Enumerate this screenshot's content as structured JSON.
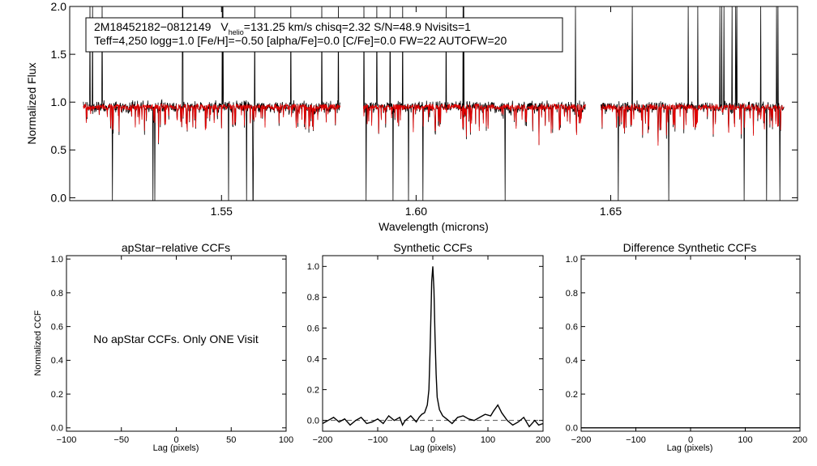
{
  "colors": {
    "observed": "#000000",
    "model": "#e00000",
    "axis": "#000000",
    "dashed": "#555555"
  },
  "chart_data": [
    {
      "type": "line",
      "panel": "spectrum",
      "xlabel": "Wavelength (microns)",
      "ylabel": "Normalized Flux",
      "xlim": [
        1.511,
        1.698
      ],
      "ylim": [
        -0.03,
        2.0
      ],
      "xticks": [
        1.55,
        1.6,
        1.65
      ],
      "xtick_labels": [
        "1.55",
        "1.60",
        "1.65"
      ],
      "yticks": [
        0.0,
        0.5,
        1.0,
        1.5,
        2.0
      ],
      "ytick_labels": [
        "0.0",
        "0.5",
        "1.0",
        "1.5",
        "2.0"
      ],
      "chip_ranges": [
        [
          1.5145,
          1.5805
        ],
        [
          1.5865,
          1.6435
        ],
        [
          1.6475,
          1.6945
        ]
      ],
      "continuum": 0.95,
      "series": [
        {
          "name": "observed spectrum",
          "color": "#000000"
        },
        {
          "name": "model spectrum",
          "color": "#e00000"
        }
      ],
      "annotation": {
        "star": "2M18452182−0812149",
        "v_label": "V",
        "v_sub": "helio",
        "v_value": "=131.25 km/s  chisq=2.32  S/N=48.9  Nvisits=1",
        "line2": "Teff=4,250 logg=1.0 [Fe/H]=−0.50 [alpha/Fe]=0.0 [C/Fe]=0.0 FW=22 AUTOFW=20"
      }
    },
    {
      "type": "line",
      "panel": "apstar",
      "title": "apStar−relative CCFs",
      "xlabel": "Lag (pixels)",
      "ylabel": "Normalized CCF",
      "xlim": [
        -100,
        100
      ],
      "ylim": [
        -0.02,
        1.02
      ],
      "xticks": [
        -100,
        -50,
        0,
        50,
        100
      ],
      "xtick_labels": [
        "−100",
        "−50",
        "0",
        "50",
        "100"
      ],
      "yticks": [
        0.0,
        0.2,
        0.4,
        0.6,
        0.8,
        1.0
      ],
      "ytick_labels": [
        "0.0",
        "0.2",
        "0.4",
        "0.6",
        "0.8",
        "1.0"
      ],
      "message": "No apStar CCFs.  Only ONE Visit"
    },
    {
      "type": "line",
      "panel": "synthetic",
      "title": "Synthetic CCFs",
      "xlabel": "Lag (pixels)",
      "xlim": [
        -200,
        200
      ],
      "ylim": [
        -0.07,
        1.07
      ],
      "xticks": [
        -200,
        -100,
        0,
        100,
        200
      ],
      "xtick_labels": [
        "−200",
        "−100",
        "0",
        "100",
        "200"
      ],
      "yticks": [
        0.0,
        0.2,
        0.4,
        0.6,
        0.8,
        1.0
      ],
      "ytick_labels": [
        "0.0",
        "0.2",
        "0.4",
        "0.6",
        "0.8",
        "1.0"
      ],
      "baseline": 0.0,
      "points": [
        [
          -200,
          -0.02
        ],
        [
          -190,
          0.0
        ],
        [
          -180,
          0.02
        ],
        [
          -170,
          -0.01
        ],
        [
          -160,
          0.01
        ],
        [
          -150,
          -0.03
        ],
        [
          -140,
          0.0
        ],
        [
          -130,
          0.02
        ],
        [
          -120,
          -0.02
        ],
        [
          -110,
          -0.01
        ],
        [
          -100,
          0.01
        ],
        [
          -90,
          -0.02
        ],
        [
          -80,
          0.03
        ],
        [
          -70,
          0.0
        ],
        [
          -60,
          0.02
        ],
        [
          -55,
          -0.03
        ],
        [
          -50,
          0.0
        ],
        [
          -40,
          0.03
        ],
        [
          -30,
          -0.01
        ],
        [
          -25,
          0.02
        ],
        [
          -20,
          0.04
        ],
        [
          -15,
          0.05
        ],
        [
          -10,
          0.1
        ],
        [
          -7,
          0.2
        ],
        [
          -5,
          0.45
        ],
        [
          -3,
          0.75
        ],
        [
          -2,
          0.9
        ],
        [
          0,
          1.0
        ],
        [
          2,
          0.85
        ],
        [
          4,
          0.55
        ],
        [
          6,
          0.3
        ],
        [
          8,
          0.15
        ],
        [
          12,
          0.07
        ],
        [
          18,
          0.03
        ],
        [
          25,
          0.01
        ],
        [
          35,
          -0.02
        ],
        [
          45,
          0.02
        ],
        [
          55,
          0.03
        ],
        [
          65,
          0.01
        ],
        [
          75,
          0.0
        ],
        [
          85,
          0.02
        ],
        [
          95,
          0.04
        ],
        [
          105,
          0.03
        ],
        [
          110,
          0.06
        ],
        [
          118,
          0.1
        ],
        [
          125,
          0.05
        ],
        [
          135,
          0.0
        ],
        [
          145,
          -0.03
        ],
        [
          155,
          -0.01
        ],
        [
          165,
          0.02
        ],
        [
          175,
          -0.04
        ],
        [
          185,
          0.0
        ],
        [
          192,
          -0.03
        ],
        [
          200,
          -0.02
        ]
      ]
    },
    {
      "type": "line",
      "panel": "difference",
      "title": "Difference Synthetic CCFs",
      "xlabel": "Lag (pixels)",
      "xlim": [
        -200,
        200
      ],
      "ylim": [
        -0.02,
        1.02
      ],
      "xticks": [
        -200,
        -100,
        0,
        100,
        200
      ],
      "xtick_labels": [
        "−200",
        "−100",
        "0",
        "100",
        "200"
      ],
      "yticks": [
        0.0,
        0.2,
        0.4,
        0.6,
        0.8,
        1.0
      ],
      "ytick_labels": [
        "0.0",
        "0.2",
        "0.4",
        "0.6",
        "0.8",
        "1.0"
      ],
      "flat_value": 0.0
    }
  ]
}
